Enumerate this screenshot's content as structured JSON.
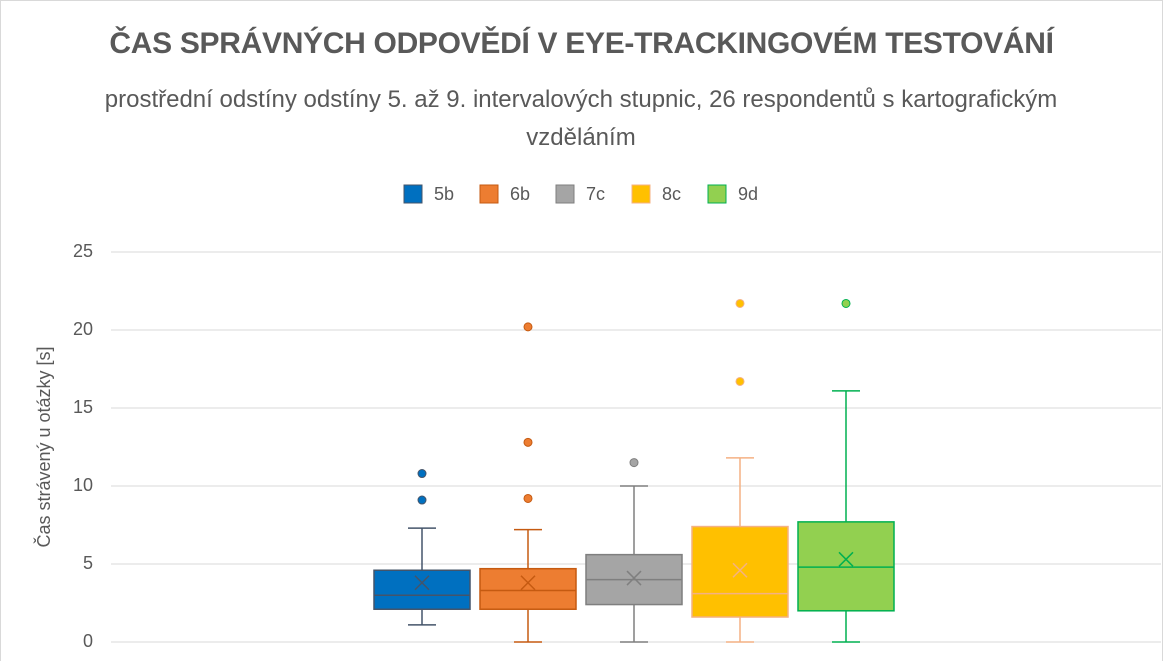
{
  "chart_data": {
    "type": "box",
    "title": "ČAS SPRÁVNÝCH ODPOVĚDÍ V EYE-TRACKINGOVÉM TESTOVÁNÍ",
    "subtitle": "prostřední odstíny odstíny 5. až 9. intervalových stupnic, 26 respondentů s kartografickým vzděláním",
    "y_label": "Čas strávený u otázky [s]",
    "ylim": [
      0,
      25
    ],
    "yticks": [
      0,
      5,
      10,
      15,
      20,
      25
    ],
    "grid": true,
    "legend": "top",
    "series": [
      {
        "name": "5b",
        "color": "#0070c0",
        "line_color": "#44546a",
        "whisker_low": 1.1,
        "q1": 2.1,
        "median": 3.0,
        "q3": 4.6,
        "whisker_high": 7.3,
        "mean": 3.8,
        "outliers": [
          9.1,
          10.8
        ]
      },
      {
        "name": "6b",
        "color": "#ed7d31",
        "line_color": "#c55a11",
        "whisker_low": 0,
        "q1": 2.1,
        "median": 3.3,
        "q3": 4.7,
        "whisker_high": 7.2,
        "mean": 3.8,
        "outliers": [
          9.2,
          12.8,
          20.2
        ]
      },
      {
        "name": "7c",
        "color": "#a5a5a5",
        "line_color": "#7f7f7f",
        "whisker_low": 0,
        "q1": 2.4,
        "median": 4.0,
        "q3": 5.6,
        "whisker_high": 10.0,
        "mean": 4.1,
        "outliers": [
          11.5
        ]
      },
      {
        "name": "8c",
        "color": "#ffc000",
        "line_color": "#f4b183",
        "whisker_low": 0,
        "q1": 1.6,
        "median": 3.1,
        "q3": 7.4,
        "whisker_high": 11.8,
        "mean": 4.6,
        "outliers": [
          16.7,
          21.7
        ]
      },
      {
        "name": "9d",
        "color": "#92d050",
        "line_color": "#00b050",
        "whisker_low": 0,
        "q1": 2.0,
        "median": 4.8,
        "q3": 7.7,
        "whisker_high": 16.1,
        "mean": 5.3,
        "outliers": [
          21.7
        ]
      }
    ]
  }
}
